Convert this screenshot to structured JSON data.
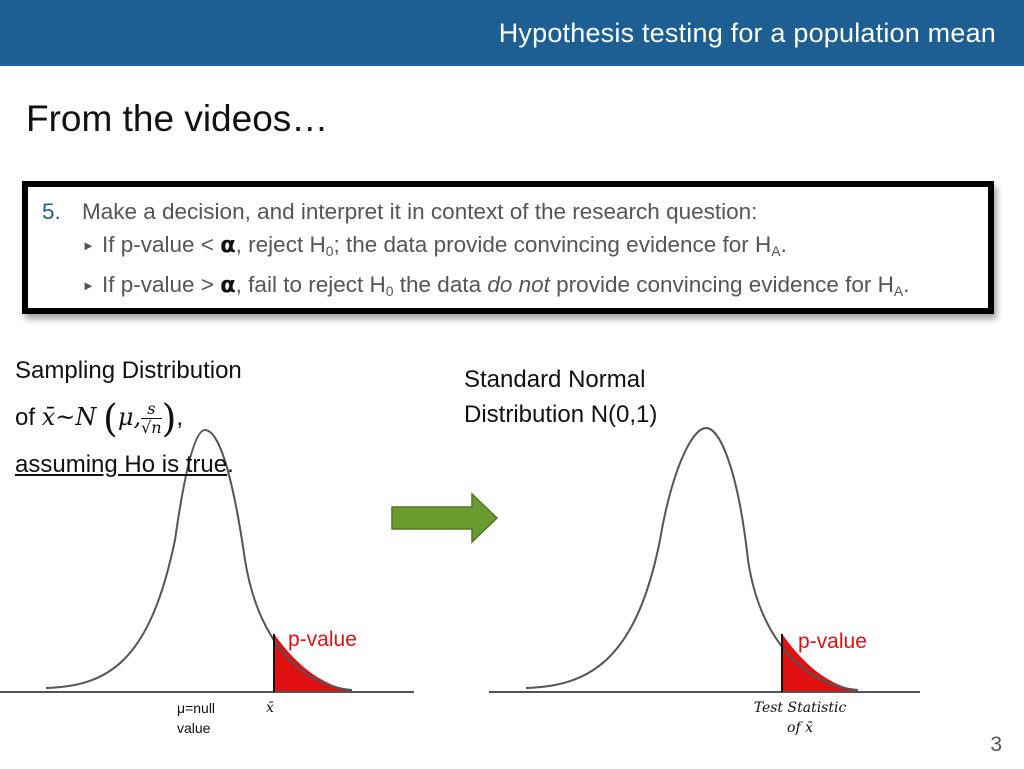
{
  "header": {
    "title": "Hypothesis testing for a population mean",
    "bg_color": "#1d5f93"
  },
  "heading": "From the videos…",
  "box": {
    "step_number": "5.",
    "step_text": "Make a decision, and interpret it in context of the research question:",
    "bullet1": {
      "part1": "If p-value < ",
      "alpha": "α",
      "part2": ", reject H",
      "sub0": "0",
      "part3": "; the data provide convincing evidence for H",
      "subA": "A",
      "part4": "."
    },
    "bullet2": {
      "part1": "If p-value > ",
      "alpha": "α",
      "part2": ", fail to reject H",
      "sub0": "0",
      "part3": " the data ",
      "italic": "do not",
      "part4": " provide convincing evidence for H",
      "subA": "A",
      "part5": "."
    }
  },
  "left_label": {
    "line1": "Sampling Distribution",
    "of": "of ",
    "xbar_dist": "x̄~N",
    "mu": "μ,",
    "frac_num": "s",
    "frac_den": "√n",
    "comma": ",",
    "line3_underlined": "assuming Ho is true",
    "line3_end": "."
  },
  "right_label": {
    "line1": "Standard Normal",
    "line2": "Distribution N(0,1)"
  },
  "left_plot": {
    "pvalue_label": "p-value",
    "null_label_line1": "μ=null",
    "null_label_line2": "value",
    "xbar_label": "x̄"
  },
  "right_plot": {
    "pvalue_label": "p-value",
    "ts_line1": "Test Statistic",
    "ts_line2": "of x̄"
  },
  "arrow_color": "#6b9a2e",
  "shade_color": "#e01010",
  "page_number": "3"
}
